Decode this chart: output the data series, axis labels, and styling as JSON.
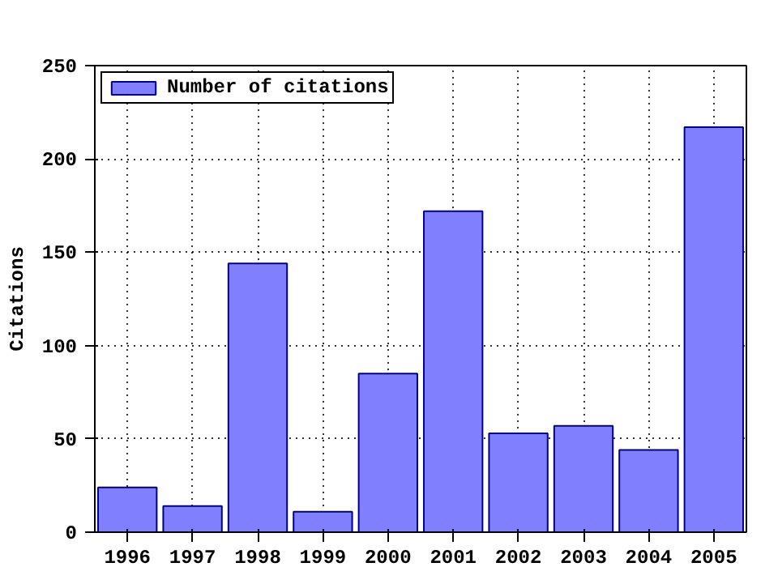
{
  "chart_data": {
    "type": "bar",
    "x": [
      1996,
      1997,
      1998,
      1999,
      2000,
      2001,
      2002,
      2003,
      2004,
      2005
    ],
    "series": [
      {
        "name": "Number of citations",
        "color": "#8080ff",
        "values": [
          24,
          14,
          144,
          11,
          85,
          172,
          53,
          57,
          44,
          217
        ]
      }
    ],
    "ylabel": "Citations",
    "xlim": [
      1995.5,
      2005.5
    ],
    "xticks": [
      1996,
      1997,
      1998,
      1999,
      2000,
      2001,
      2002,
      2003,
      2004,
      2005
    ],
    "ylim": [
      0,
      250
    ],
    "yticks": [
      0,
      50,
      100,
      150,
      200,
      250
    ],
    "grid": true,
    "legend": "top left"
  }
}
